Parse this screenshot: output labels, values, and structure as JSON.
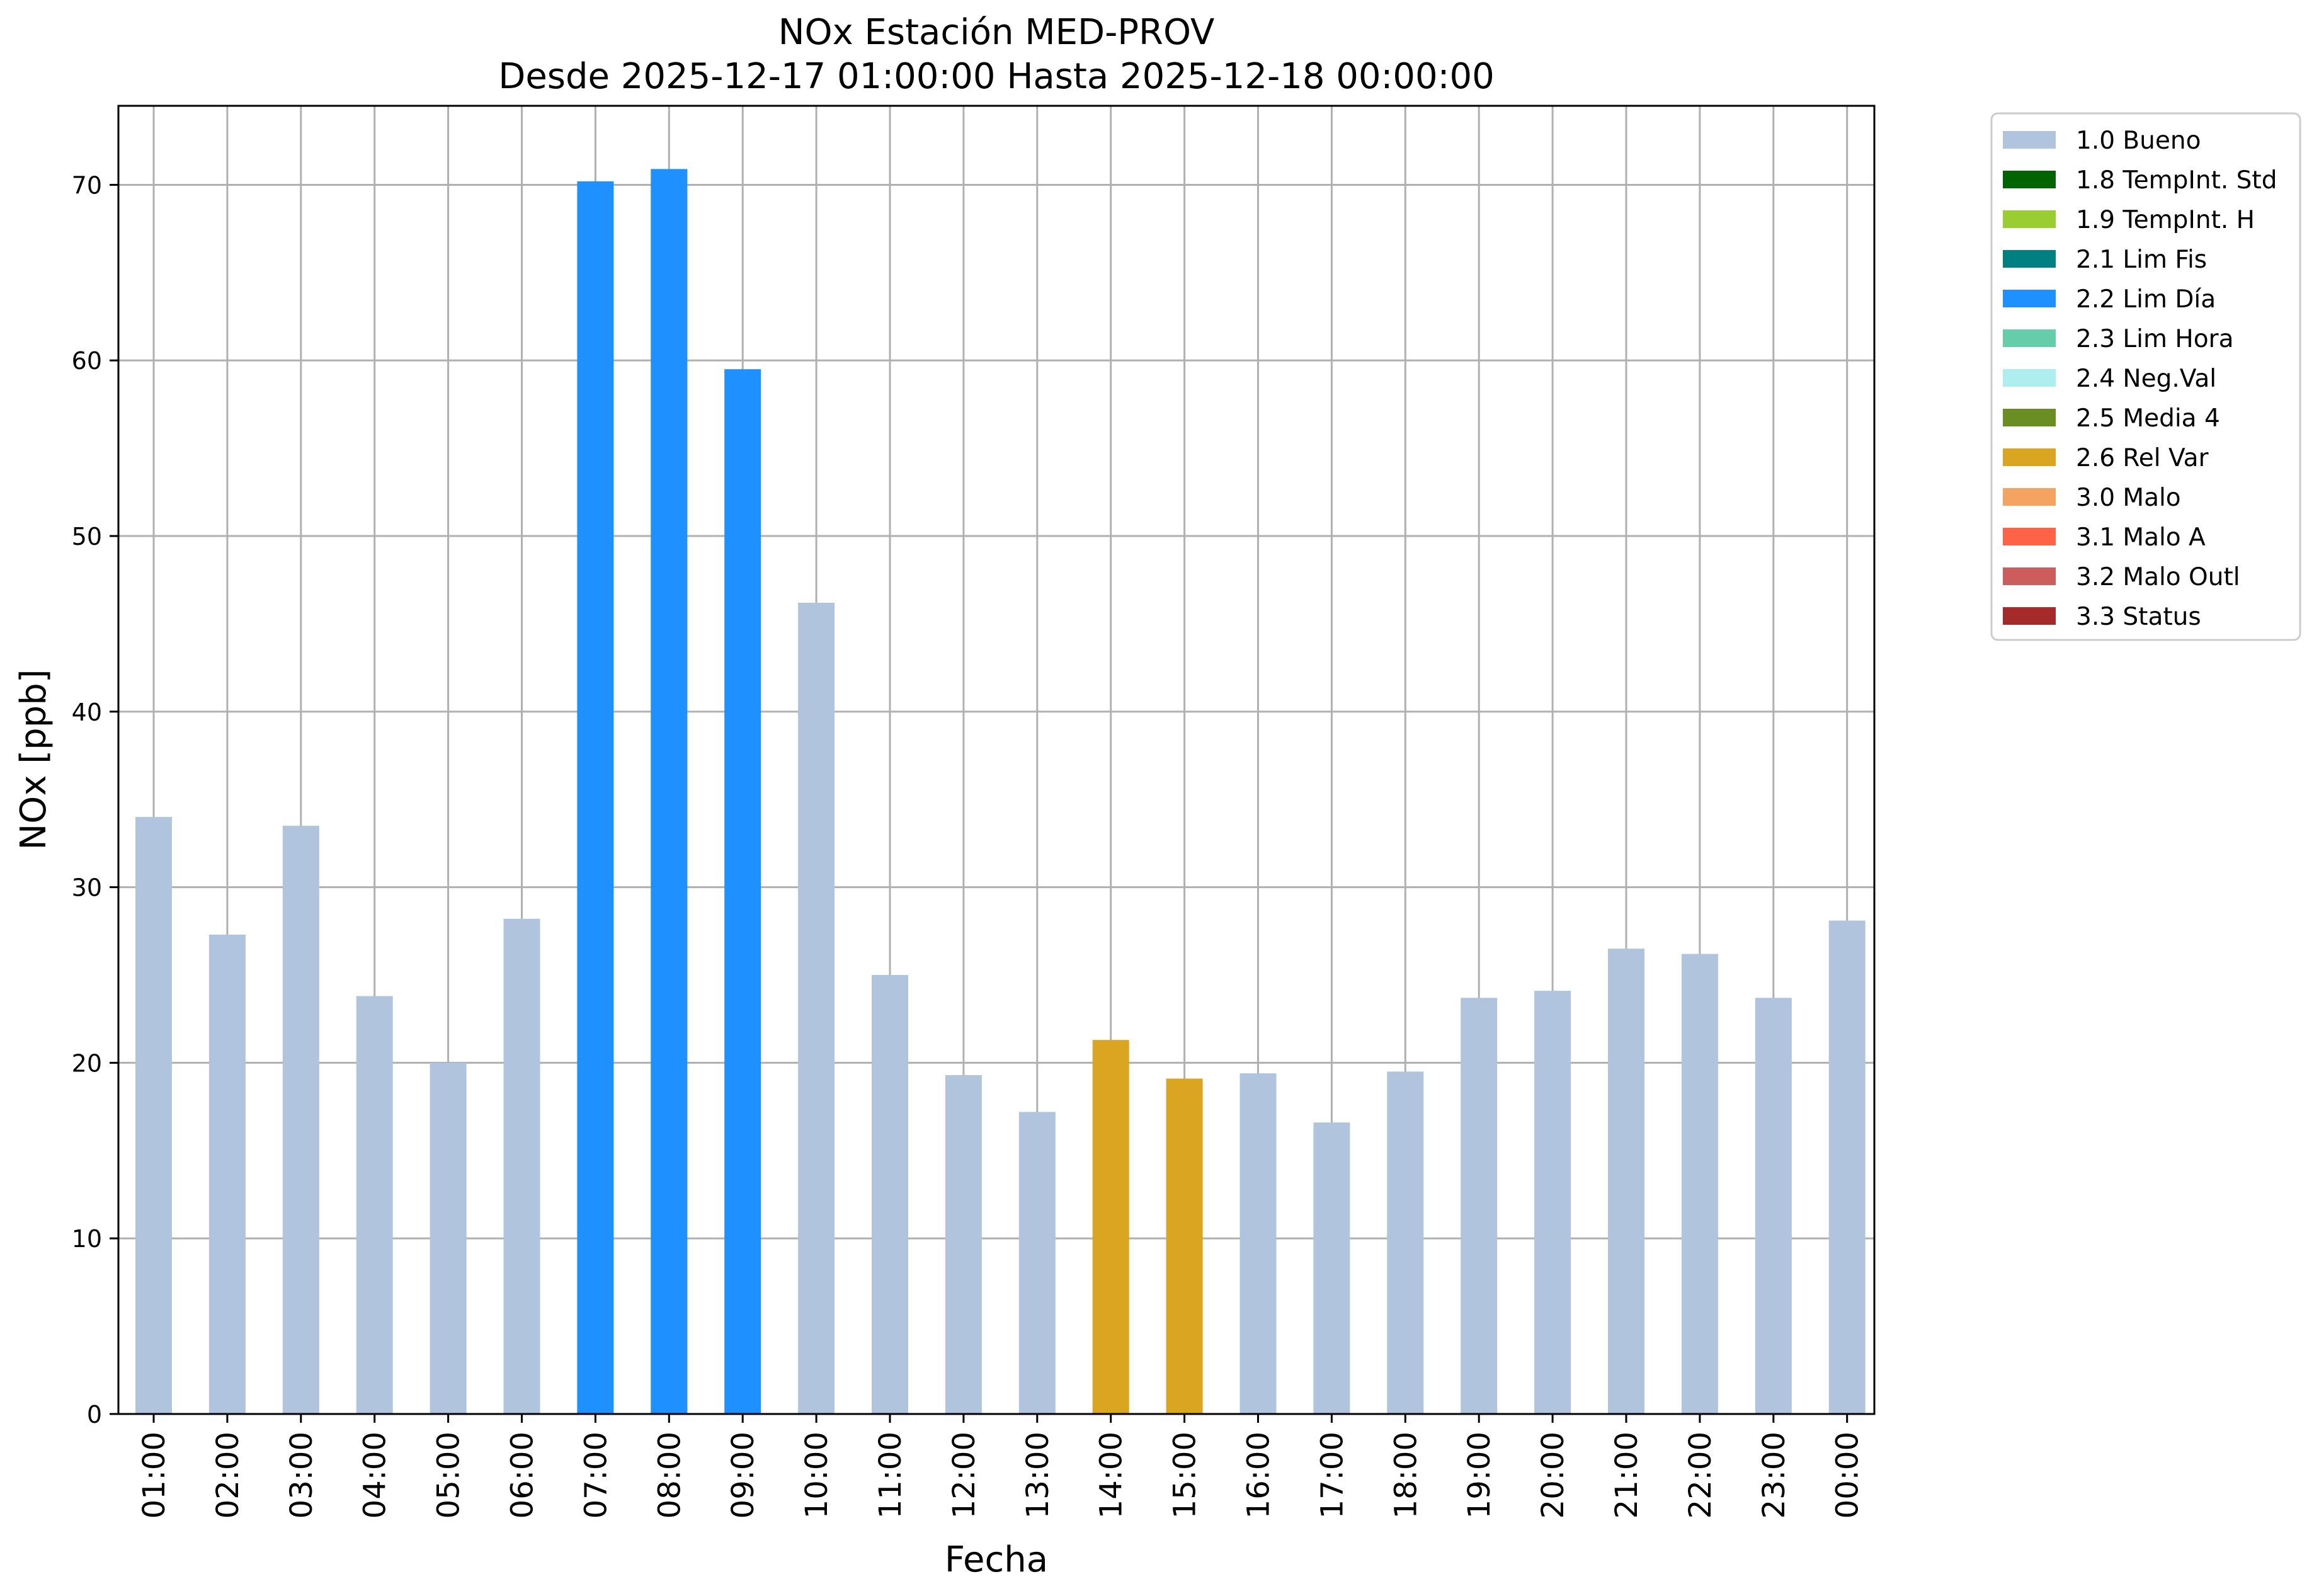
{
  "chart_data": {
    "type": "bar",
    "title": "NOx Estación MED-PROV",
    "subtitle": "Desde 2025-12-17 01:00:00 Hasta 2025-12-18 00:00:00",
    "xlabel": "Fecha",
    "ylabel": "NOx [ppb]",
    "ylim": [
      0,
      74.5
    ],
    "yticks": [
      0,
      10,
      20,
      30,
      40,
      50,
      60,
      70
    ],
    "grid": true,
    "legend_position": "outside-top-right",
    "categories": [
      "01:00",
      "02:00",
      "03:00",
      "04:00",
      "05:00",
      "06:00",
      "07:00",
      "08:00",
      "09:00",
      "10:00",
      "11:00",
      "12:00",
      "13:00",
      "14:00",
      "15:00",
      "16:00",
      "17:00",
      "18:00",
      "19:00",
      "20:00",
      "21:00",
      "22:00",
      "23:00",
      "00:00"
    ],
    "values": [
      34.0,
      27.3,
      33.5,
      23.8,
      20.0,
      28.2,
      70.2,
      70.9,
      59.5,
      46.2,
      25.0,
      19.3,
      17.2,
      21.3,
      19.1,
      19.4,
      16.6,
      19.5,
      23.7,
      24.1,
      26.5,
      26.2,
      23.7,
      28.1
    ],
    "flags": [
      "1.0 Bueno",
      "1.0 Bueno",
      "1.0 Bueno",
      "1.0 Bueno",
      "1.0 Bueno",
      "1.0 Bueno",
      "2.2 Lim Día",
      "2.2 Lim Día",
      "2.2 Lim Día",
      "1.0 Bueno",
      "1.0 Bueno",
      "1.0 Bueno",
      "1.0 Bueno",
      "2.6 Rel Var",
      "2.6 Rel Var",
      "1.0 Bueno",
      "1.0 Bueno",
      "1.0 Bueno",
      "1.0 Bueno",
      "1.0 Bueno",
      "1.0 Bueno",
      "1.0 Bueno",
      "1.0 Bueno",
      "1.0 Bueno"
    ],
    "legend": [
      {
        "label": "1.0 Bueno",
        "color": "#B0C4DE"
      },
      {
        "label": "1.8 TempInt. Std",
        "color": "#006400"
      },
      {
        "label": "1.9 TempInt. H",
        "color": "#9ACD32"
      },
      {
        "label": "2.1 Lim Fis",
        "color": "#008080"
      },
      {
        "label": "2.2 Lim Día",
        "color": "#1E90FF"
      },
      {
        "label": "2.3 Lim Hora",
        "color": "#66CDAA"
      },
      {
        "label": "2.4 Neg.Val",
        "color": "#AFEEEE"
      },
      {
        "label": "2.5 Media 4",
        "color": "#6B8E23"
      },
      {
        "label": "2.6 Rel Var",
        "color": "#DAA520"
      },
      {
        "label": "3.0 Malo",
        "color": "#F4A460"
      },
      {
        "label": "3.1 Malo A",
        "color": "#FF6347"
      },
      {
        "label": "3.2 Malo Outl",
        "color": "#CD5C5C"
      },
      {
        "label": "3.3 Status",
        "color": "#A52A2A"
      }
    ]
  }
}
